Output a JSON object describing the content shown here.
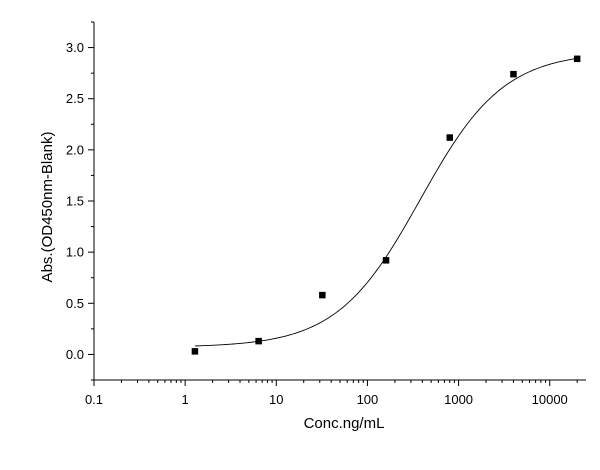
{
  "chart_data": {
    "type": "scatter",
    "xlabel": "Conc.ng/mL",
    "ylabel": "Abs.(OD450nm-Blank)",
    "x_scale": "log",
    "xlim": [
      0.1,
      25000
    ],
    "ylim": [
      -0.25,
      3.25
    ],
    "x_ticks": [
      0.1,
      1,
      10,
      100,
      1000,
      10000
    ],
    "x_tick_labels": [
      "0.1",
      "1",
      "10",
      "100",
      "1000",
      "10000"
    ],
    "y_ticks": [
      0.0,
      0.5,
      1.0,
      1.5,
      2.0,
      2.5,
      3.0
    ],
    "y_tick_labels": [
      "0.0",
      "0.5",
      "1.0",
      "1.5",
      "2.0",
      "2.5",
      "3.0"
    ],
    "grid": false,
    "points": [
      {
        "x": 1.28,
        "y": 0.03
      },
      {
        "x": 6.4,
        "y": 0.13
      },
      {
        "x": 32,
        "y": 0.58
      },
      {
        "x": 160,
        "y": 0.92
      },
      {
        "x": 800,
        "y": 2.12
      },
      {
        "x": 4000,
        "y": 2.74
      },
      {
        "x": 20000,
        "y": 2.89
      }
    ],
    "fit_curve": {
      "type": "4PL",
      "bottom": 0.07,
      "top": 2.96,
      "ec50": 380,
      "hill": 0.95,
      "x_range": [
        1.28,
        20000
      ]
    },
    "colors": {
      "marker": "#000000",
      "line": "#000000",
      "axis": "#000000"
    }
  }
}
